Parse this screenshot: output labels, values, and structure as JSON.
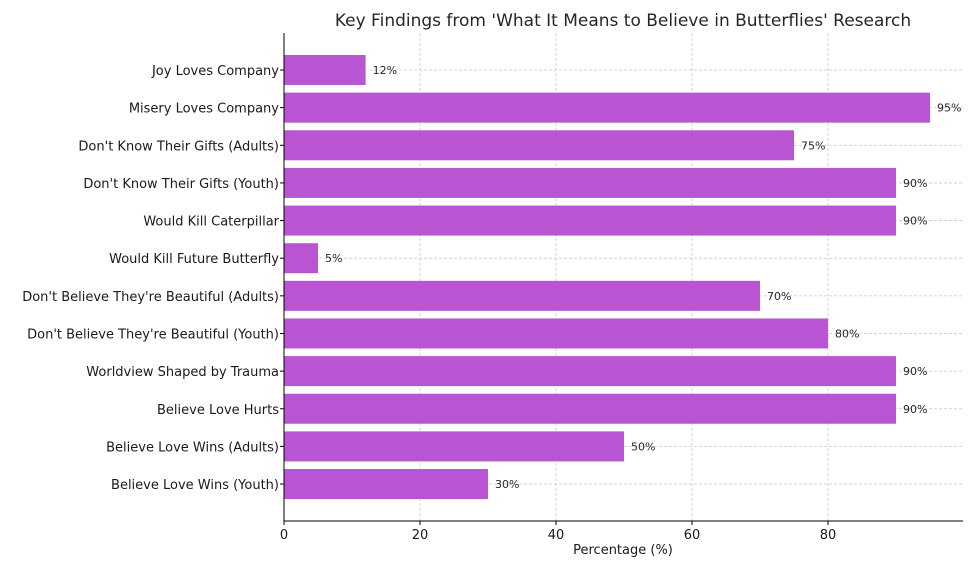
{
  "chart_data": {
    "type": "bar",
    "orientation": "horizontal",
    "title": "Key Findings from 'What It Means to Believe in Butterflies' Research",
    "xlabel": "Percentage (%)",
    "ylabel": "",
    "categories": [
      "Joy Loves Company",
      "Misery Loves Company",
      "Don't Know Their Gifts (Adults)",
      "Don't Know Their Gifts (Youth)",
      "Would Kill Caterpillar",
      "Would Kill Future Butterfly",
      "Don't Believe They're Beautiful (Adults)",
      "Don't Believe They're Beautiful (Youth)",
      "Worldview Shaped by Trauma",
      "Believe Love Hurts",
      "Believe Love Wins (Adults)",
      "Believe Love Wins (Youth)"
    ],
    "values": [
      12,
      95,
      75,
      90,
      90,
      5,
      70,
      80,
      90,
      90,
      50,
      30
    ],
    "data_labels": [
      "12%",
      "95%",
      "75%",
      "90%",
      "90%",
      "5%",
      "70%",
      "80%",
      "90%",
      "90%",
      "50%",
      "30%"
    ],
    "xticks": [
      "0",
      "20",
      "40",
      "60",
      "80"
    ],
    "xlim": [
      0,
      100
    ],
    "grid": true,
    "bar_color": "#b955d3"
  }
}
